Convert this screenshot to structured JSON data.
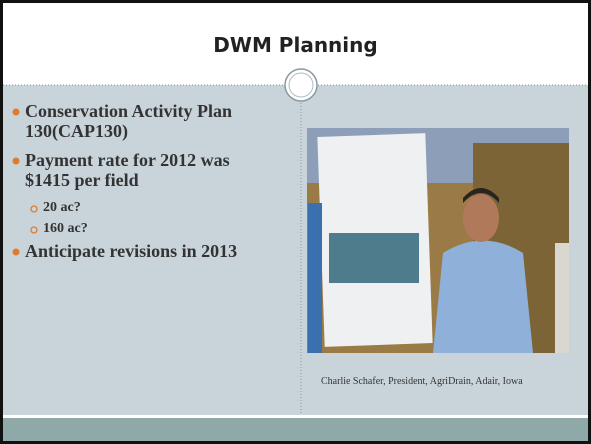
{
  "header": {
    "title": "DWM Planning"
  },
  "bullets": [
    {
      "text": "Conservation Activity Plan 130(CAP130)",
      "level": 1
    },
    {
      "text": "Payment rate for 2012 was $1415 per field",
      "level": 1
    },
    {
      "text": "20 ac?",
      "level": 2
    },
    {
      "text": "160 ac?",
      "level": 2
    },
    {
      "text": "Anticipate revisions in 2013",
      "level": 1
    }
  ],
  "caption": "Charlie Schafer, President, AgriDrain, Adair, Iowa"
}
